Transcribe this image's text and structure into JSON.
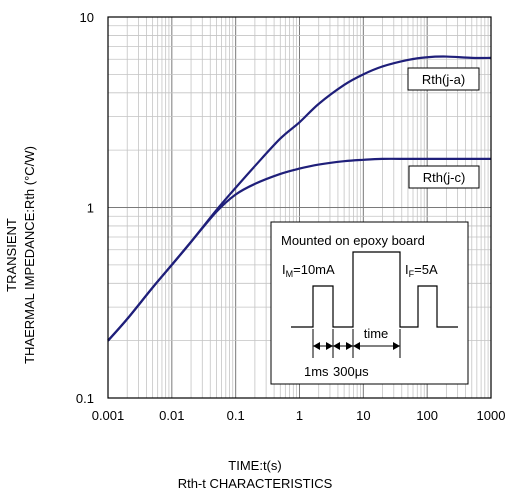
{
  "chart_data": {
    "type": "line",
    "title": "Rth-t CHARACTERISTICS",
    "xlabel": "TIME:t(s)",
    "ylabel_line1": "TRANSIENT",
    "ylabel_line2": "THAERMAL IMPEDANCE:Rth (°C/W)",
    "x_scale": "log",
    "y_scale": "log",
    "xlim": [
      0.001,
      1000
    ],
    "ylim": [
      0.1,
      10
    ],
    "x_tick_labels": [
      "0.001",
      "0.01",
      "0.1",
      "1",
      "10",
      "100",
      "1000"
    ],
    "y_tick_labels": [
      "0.1",
      "1",
      "10"
    ],
    "grid": true,
    "series": [
      {
        "name": "Rth(j-a)",
        "color": "#1f1f7a",
        "x": [
          0.001,
          0.002,
          0.005,
          0.01,
          0.02,
          0.05,
          0.1,
          0.2,
          0.5,
          1,
          2,
          5,
          10,
          20,
          50,
          100,
          200,
          500,
          1000
        ],
        "y": [
          0.2,
          0.26,
          0.38,
          0.5,
          0.66,
          0.97,
          1.27,
          1.65,
          2.3,
          2.8,
          3.5,
          4.4,
          5.0,
          5.5,
          5.95,
          6.15,
          6.2,
          6.1,
          6.1
        ]
      },
      {
        "name": "Rth(j-c)",
        "color": "#1f1f7a",
        "x": [
          0.001,
          0.002,
          0.005,
          0.01,
          0.02,
          0.05,
          0.1,
          0.2,
          0.5,
          1,
          2,
          5,
          10,
          20,
          50,
          100,
          200,
          500,
          1000
        ],
        "y": [
          0.2,
          0.26,
          0.38,
          0.5,
          0.66,
          0.95,
          1.17,
          1.33,
          1.5,
          1.6,
          1.68,
          1.75,
          1.78,
          1.8,
          1.8,
          1.8,
          1.8,
          1.8,
          1.8
        ]
      }
    ],
    "inset": {
      "heading": "Mounted on epoxy board",
      "im_label": "I",
      "im_sub": "M",
      "im_value": "=10mA",
      "if_label": "I",
      "if_sub": "F",
      "if_value": "=5A",
      "time_label": "time",
      "pulse1_label": "1ms",
      "pulse2_label": "300μs"
    }
  }
}
